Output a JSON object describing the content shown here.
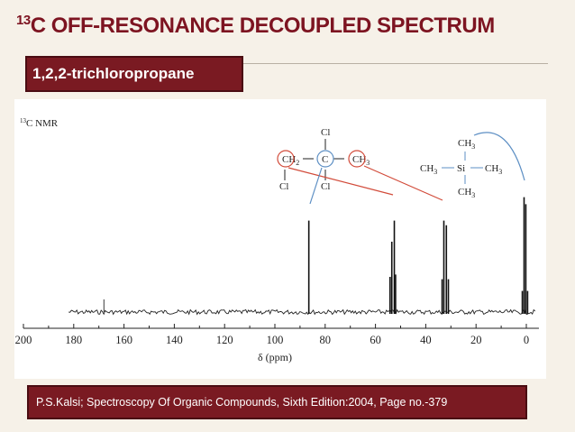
{
  "slide": {
    "title_sup": "13",
    "title_main": "C OFF-RESONANCE DECOUPLED SPECTRUM",
    "compound": "1,2,2-trichloropropane",
    "citation": "P.S.Kalsi; Spectroscopy Of Organic Compounds, Sixth Edition:2004, Page no.-379"
  },
  "structure": {
    "left_group": {
      "upper": "Cl",
      "lower": "Cl",
      "labels": [
        "CH2",
        "C",
        "CH3"
      ]
    },
    "tms": {
      "top": "CH3",
      "left": "CH3",
      "center": "Si",
      "right": "CH3",
      "bottom": "CH3"
    }
  },
  "chart_data": {
    "type": "line",
    "title": "13C NMR",
    "xlabel": "δ (ppm)",
    "ylabel": "",
    "xlim": [
      200,
      -5
    ],
    "x_reversed": true,
    "xticks": [
      200,
      180,
      160,
      140,
      120,
      100,
      80,
      60,
      40,
      20,
      0
    ],
    "grid": false,
    "peaks": [
      {
        "delta": 86.5,
        "height": 0.78,
        "multiplicity": "singlet"
      },
      {
        "delta": 52.0,
        "height": 0.32,
        "multiplicity": "quartet-low"
      },
      {
        "delta": 52.5,
        "height": 0.78,
        "multiplicity": "line"
      },
      {
        "delta": 53.5,
        "height": 0.6,
        "multiplicity": "line"
      },
      {
        "delta": 54.2,
        "height": 0.3,
        "multiplicity": "line"
      },
      {
        "delta": 33.5,
        "height": 0.28,
        "multiplicity": "line"
      },
      {
        "delta": 32.8,
        "height": 0.78,
        "multiplicity": "line"
      },
      {
        "delta": 31.8,
        "height": 0.74,
        "multiplicity": "line"
      },
      {
        "delta": 31.0,
        "height": 0.28,
        "multiplicity": "line"
      },
      {
        "delta": 1.6,
        "height": 0.18,
        "multiplicity": "line"
      },
      {
        "delta": 0.9,
        "height": 0.98,
        "multiplicity": "line"
      },
      {
        "delta": 0.2,
        "height": 0.92,
        "multiplicity": "line"
      },
      {
        "delta": -0.5,
        "height": 0.18,
        "multiplicity": "line"
      }
    ]
  }
}
